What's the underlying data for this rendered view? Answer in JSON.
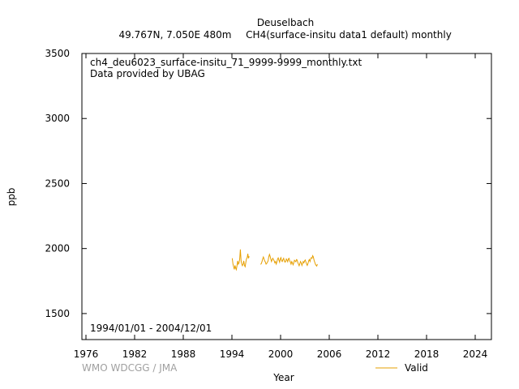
{
  "chart_data": {
    "type": "line",
    "title_line1": "Deuselbach",
    "title_location": "49.767N, 7.050E 480m",
    "title_series": "CH4(surface-insitu data1 default) monthly",
    "file_label": "ch4_deu6023_surface-insitu_71_9999-9999_monthly.txt",
    "provider_label": "Data provided by UBAG",
    "date_range_label": "1994/01/01 - 2004/12/01",
    "xlabel": "Year",
    "ylabel": "ppb",
    "xlim": [
      1975.5,
      2026.0
    ],
    "ylim": [
      1300,
      3500
    ],
    "x_ticks": [
      1976,
      1982,
      1988,
      1994,
      2000,
      2006,
      2012,
      2018,
      2024
    ],
    "y_ticks": [
      1500,
      2000,
      2500,
      3000,
      3500
    ],
    "grid": false,
    "legend_position": "bottom-right",
    "watermark": "WMO WDCGG / JMA",
    "series": [
      {
        "name": "Valid",
        "color": "#e69f00",
        "x": [
          1994.04,
          1994.13,
          1994.21,
          1994.29,
          1994.38,
          1994.46,
          1994.54,
          1994.63,
          1994.71,
          1994.79,
          1994.88,
          1994.96,
          1995.04,
          1995.13,
          1995.21,
          1995.29,
          1995.38,
          1995.46,
          1995.54,
          1995.63,
          1995.71,
          1995.79,
          1995.88,
          1995.96,
          1996.04,
          1996.13,
          null,
          1997.54,
          1997.63,
          1997.71,
          1997.79,
          1997.88,
          1997.96,
          1998.04,
          1998.13,
          1998.21,
          1998.29,
          1998.38,
          1998.46,
          1998.54,
          1998.63,
          1998.71,
          1998.79,
          1998.88,
          1998.96,
          1999.04,
          1999.13,
          1999.21,
          1999.29,
          1999.38,
          1999.46,
          1999.54,
          1999.63,
          1999.71,
          1999.79,
          1999.88,
          1999.96,
          2000.04,
          2000.13,
          2000.21,
          2000.29,
          2000.38,
          2000.46,
          2000.54,
          2000.63,
          2000.71,
          2000.79,
          2000.88,
          2000.96,
          2001.04,
          2001.13,
          2001.21,
          2001.29,
          2001.38,
          2001.46,
          2001.54,
          2001.63,
          2001.71,
          2001.79,
          2001.88,
          2001.96,
          2002.04,
          2002.13,
          2002.21,
          2002.29,
          2002.38,
          2002.46,
          2002.54,
          2002.63,
          2002.71,
          2002.79,
          2002.88,
          2002.96,
          2003.04,
          2003.13,
          2003.21,
          2003.29,
          2003.38,
          2003.46,
          2003.54,
          2003.63,
          2003.71,
          2003.79,
          2003.88,
          2003.96,
          2004.04,
          2004.13,
          2004.21,
          2004.29,
          2004.38,
          2004.46,
          2004.54
        ],
        "y": [
          1925,
          1880,
          1860,
          1840,
          1870,
          1850,
          1838,
          1870,
          1905,
          1880,
          1890,
          1920,
          1993,
          1905,
          1880,
          1868,
          1880,
          1905,
          1870,
          1860,
          1892,
          1920,
          1930,
          1960,
          1925,
          1940,
          null,
          1878,
          1885,
          1900,
          1920,
          1935,
          1920,
          1905,
          1895,
          1880,
          1885,
          1895,
          1905,
          1935,
          1955,
          1940,
          1920,
          1900,
          1915,
          1925,
          1915,
          1905,
          1890,
          1900,
          1880,
          1895,
          1920,
          1928,
          1912,
          1895,
          1920,
          1930,
          1905,
          1900,
          1915,
          1925,
          1905,
          1895,
          1900,
          1920,
          1912,
          1898,
          1920,
          1925,
          1905,
          1895,
          1880,
          1900,
          1890,
          1875,
          1890,
          1910,
          1905,
          1898,
          1915,
          1912,
          1890,
          1880,
          1868,
          1885,
          1900,
          1890,
          1870,
          1885,
          1900,
          1890,
          1905,
          1912,
          1895,
          1880,
          1870,
          1885,
          1905,
          1915,
          1900,
          1920,
          1930,
          1925,
          1945,
          1935,
          1910,
          1895,
          1880,
          1870,
          1865,
          1880
        ]
      }
    ]
  }
}
